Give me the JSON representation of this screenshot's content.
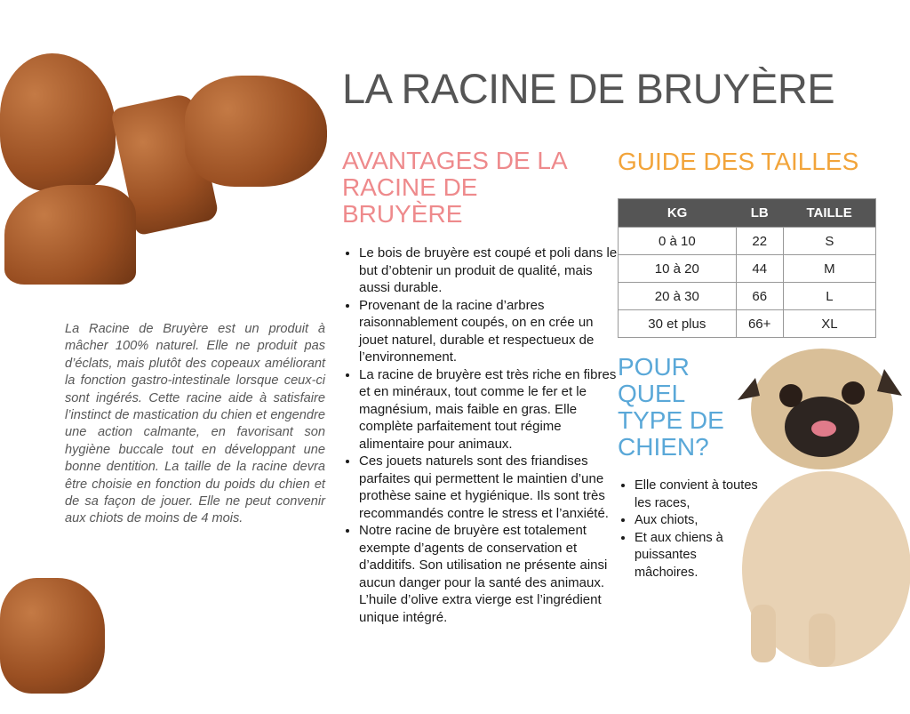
{
  "title": "LA RACINE DE BRUYÈRE",
  "intro": "La Racine de Bruyère est un produit à mâcher 100% naturel. Elle ne produit pas d’éclats, mais plutôt des copeaux améliorant la fonction gastro-intestinale lorsque ceux-ci sont ingérés. Cette racine aide à satisfaire l’instinct de mastication du chien et engendre une action calmante, en favorisant son hygiène buccale tout en développant une bonne dentition. La taille de la racine devra être choisie en fonction du poids du chien et de sa façon de jouer. Elle ne peut convenir aux chiots de moins de 4 mois.",
  "advantages": {
    "title": "AVANTAGES DE LA RACINE DE BRUYÈRE",
    "items": [
      " Le bois de bruyère est coupé et poli dans le but d’obtenir un produit de qualité, mais aussi durable.",
      "Provenant de la racine d’arbres raisonnablement coupés, on en crée un jouet naturel, durable et respectueux de l’environnement.",
      "La racine de bruyère est très riche en fibres et en minéraux, tout comme le fer et le magnésium, mais faible en gras. Elle complète parfaitement tout régime alimentaire pour animaux.",
      "Ces jouets naturels sont des friandises parfaites qui permettent le maintien d’une prothèse saine et hygiénique. Ils sont très recommandés contre le stress et l’anxiété.",
      "Notre racine de bruyère est totalement exempte d’agents de conservation et d’additifs. Son utilisation ne présente ainsi aucun danger pour la santé des animaux. L’huile d’olive extra vierge est l’ingrédient unique intégré."
    ]
  },
  "guide": {
    "title": "GUIDE DES TAILLES",
    "headers": [
      "KG",
      "LB",
      "TAILLE"
    ],
    "rows": [
      [
        "0 à 10",
        "22",
        "S"
      ],
      [
        "10 à 20",
        "44",
        "M"
      ],
      [
        "20 à 30",
        "66",
        "L"
      ],
      [
        "30 et plus",
        "66+",
        "XL"
      ]
    ]
  },
  "dog_type": {
    "title": "POUR QUEL TYPE DE CHIEN?",
    "items": [
      "Elle convient à toutes les races,",
      "Aux chiots,",
      "Et aux chiens à puissantes mâchoires."
    ]
  },
  "colors": {
    "title": "#555555",
    "advantages": "#ee8a8c",
    "guide": "#f2a43a",
    "dog_type": "#5aa8d8",
    "table_header": "#555555"
  }
}
